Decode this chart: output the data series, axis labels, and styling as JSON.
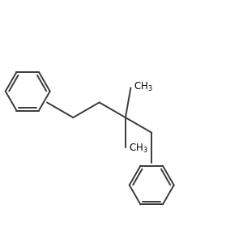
{
  "background_color": "#ffffff",
  "line_color": "#3a3a3a",
  "line_width": 1.4,
  "text_color": "#000000",
  "ch3_font_size": 8.5,
  "fig_size": [
    3.0,
    3.0
  ],
  "dpi": 100,
  "xlim": [
    0.0,
    3.0
  ],
  "ylim": [
    -0.5,
    2.5
  ]
}
